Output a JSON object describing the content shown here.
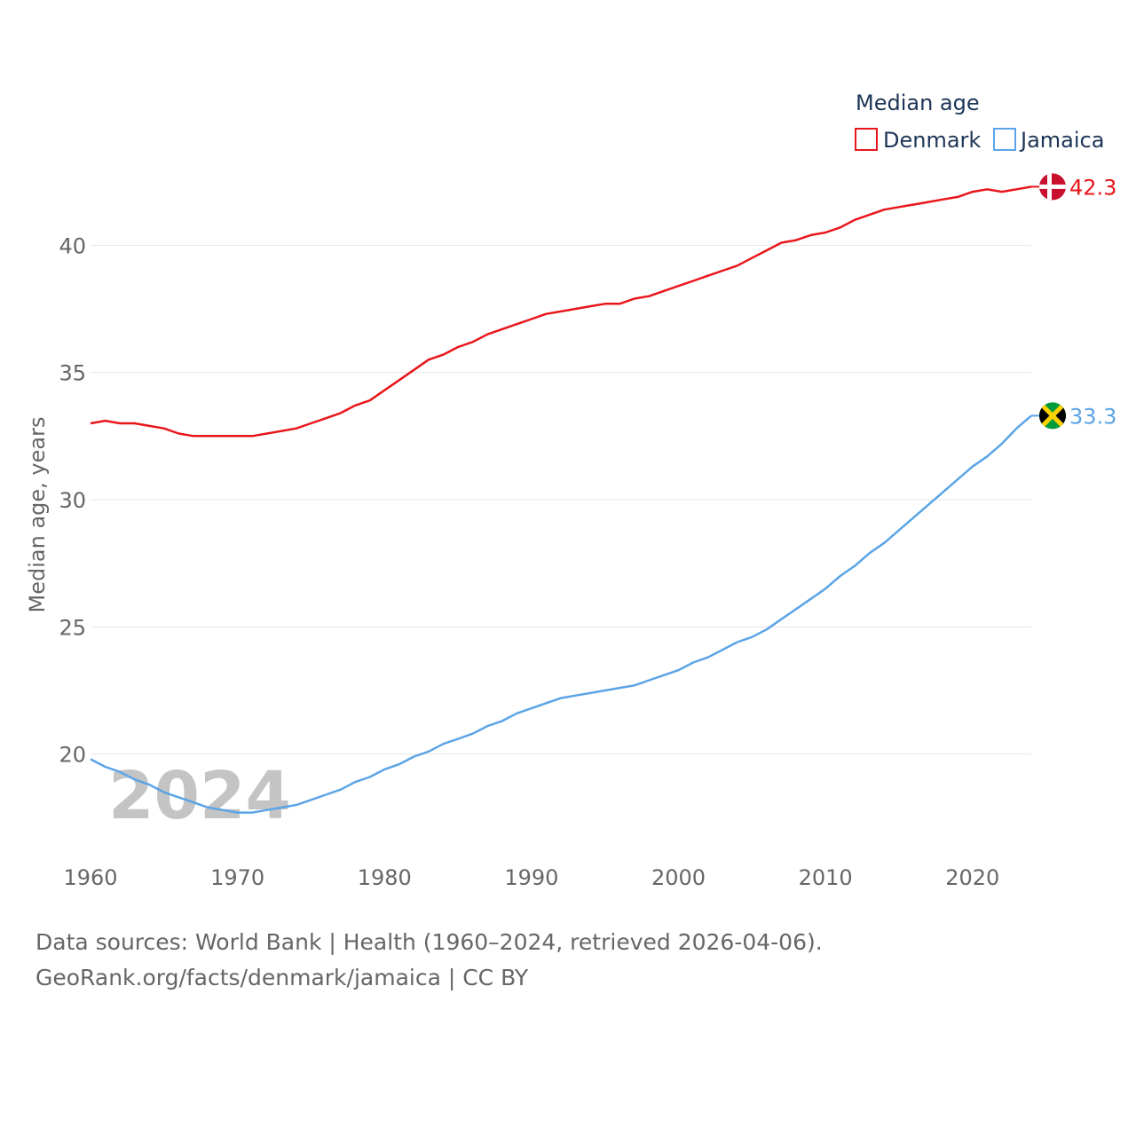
{
  "chart_data": {
    "type": "line",
    "legend_title": "Median age",
    "ylabel": "Median age, years",
    "xlabel": "",
    "xlim": [
      1960,
      2024
    ],
    "ylim": [
      16.5,
      43.5
    ],
    "x_ticks": [
      "1960",
      "1970",
      "1980",
      "1990",
      "2000",
      "2010",
      "2020"
    ],
    "y_ticks": [
      "20",
      "25",
      "30",
      "35",
      "40"
    ],
    "year_watermark": "2024",
    "legend_placement": "top-right",
    "series": [
      {
        "name": "Denmark",
        "color": "#e8161b",
        "end_label": "42.3",
        "flag_icon": "denmark-flag-icon",
        "x_start": 1960,
        "values": [
          33.0,
          33.1,
          33.0,
          33.0,
          32.9,
          32.8,
          32.6,
          32.5,
          32.5,
          32.5,
          32.5,
          32.5,
          32.6,
          32.7,
          32.8,
          33.0,
          33.2,
          33.4,
          33.7,
          33.9,
          34.3,
          34.7,
          35.1,
          35.5,
          35.7,
          36.0,
          36.2,
          36.5,
          36.7,
          36.9,
          37.1,
          37.3,
          37.4,
          37.5,
          37.6,
          37.7,
          37.7,
          37.9,
          38.0,
          38.2,
          38.4,
          38.6,
          38.8,
          39.0,
          39.2,
          39.5,
          39.8,
          40.1,
          40.2,
          40.4,
          40.5,
          40.7,
          41.0,
          41.2,
          41.4,
          41.5,
          41.6,
          41.7,
          41.8,
          41.9,
          42.1,
          42.2,
          42.1,
          42.2,
          42.3
        ]
      },
      {
        "name": "Jamaica",
        "color": "#5ba4e6",
        "end_label": "33.3",
        "flag_icon": "jamaica-flag-icon",
        "x_start": 1960,
        "values": [
          19.8,
          19.5,
          19.3,
          19.0,
          18.8,
          18.5,
          18.3,
          18.1,
          17.9,
          17.8,
          17.7,
          17.7,
          17.8,
          17.9,
          18.0,
          18.2,
          18.4,
          18.6,
          18.9,
          19.1,
          19.4,
          19.6,
          19.9,
          20.1,
          20.4,
          20.6,
          20.8,
          21.1,
          21.3,
          21.6,
          21.8,
          22.0,
          22.2,
          22.3,
          22.4,
          22.5,
          22.6,
          22.7,
          22.9,
          23.1,
          23.3,
          23.6,
          23.8,
          24.1,
          24.4,
          24.6,
          24.9,
          25.3,
          25.7,
          26.1,
          26.5,
          27.0,
          27.4,
          27.9,
          28.3,
          28.8,
          29.3,
          29.8,
          30.3,
          30.8,
          31.3,
          31.7,
          32.2,
          32.8,
          33.3
        ]
      }
    ]
  },
  "footer": {
    "sources": "Data sources: World Bank | Health (1960–2024, retrieved 2026-04-06).",
    "credit": "GeoRank.org/facts/denmark/jamaica | CC BY"
  }
}
